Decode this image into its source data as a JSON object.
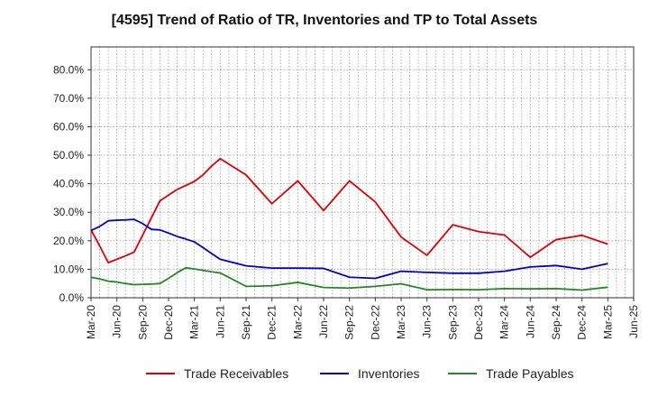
{
  "chart_data": {
    "type": "line",
    "title": "[4595]  Trend of Ratio of TR, Inventories and TP to Total Assets",
    "xlabel": "",
    "ylabel": "",
    "ylim": [
      0,
      0.88
    ],
    "y_ticks": [
      "0.0%",
      "10.0%",
      "20.0%",
      "30.0%",
      "40.0%",
      "50.0%",
      "60.0%",
      "70.0%",
      "80.0%"
    ],
    "y_tick_values": [
      0,
      0.1,
      0.2,
      0.3,
      0.4,
      0.5,
      0.6,
      0.7,
      0.8
    ],
    "x_tick_labels": [
      "Mar-20",
      "Jun-20",
      "Sep-20",
      "Dec-20",
      "Mar-21",
      "Jun-21",
      "Sep-21",
      "Dec-21",
      "Mar-22",
      "Jun-22",
      "Sep-22",
      "Dec-22",
      "Mar-23",
      "Jun-23",
      "Sep-23",
      "Dec-23",
      "Mar-24",
      "Jun-24",
      "Sep-24",
      "Dec-24",
      "Mar-25",
      "Jun-25"
    ],
    "x": [
      "2020-03",
      "2020-04",
      "2020-05",
      "2020-06",
      "2020-07",
      "2020-08",
      "2020-09",
      "2020-10",
      "2020-11",
      "2020-12",
      "2021-01",
      "2021-02",
      "2021-03",
      "2021-04",
      "2021-05",
      "2021-06",
      "2021-09",
      "2021-12",
      "2022-03",
      "2022-06",
      "2022-09",
      "2022-12",
      "2023-03",
      "2023-06",
      "2023-09",
      "2023-12",
      "2024-03",
      "2024-06",
      "2024-09",
      "2024-12",
      "2025-03"
    ],
    "grid": true,
    "legend_position": "bottom",
    "series": [
      {
        "name": "Trade Receivables",
        "color": "#dd0000",
        "values": [
          0.238,
          0.182,
          0.123,
          0.135,
          0.147,
          0.16,
          0.22,
          0.28,
          0.34,
          0.36,
          0.38,
          0.394,
          0.408,
          0.431,
          0.462,
          0.488,
          0.431,
          0.33,
          0.41,
          0.306,
          0.41,
          0.336,
          0.213,
          0.149,
          0.256,
          0.232,
          0.22,
          0.142,
          0.204,
          0.219,
          0.188
        ]
      },
      {
        "name": "Inventories",
        "color": "#0000cc",
        "values": [
          0.236,
          0.25,
          0.27,
          0.272,
          0.273,
          0.275,
          0.26,
          0.24,
          0.238,
          0.227,
          0.215,
          0.206,
          0.196,
          0.176,
          0.155,
          0.135,
          0.112,
          0.104,
          0.104,
          0.103,
          0.072,
          0.068,
          0.093,
          0.089,
          0.086,
          0.086,
          0.093,
          0.108,
          0.113,
          0.1,
          0.12
        ]
      },
      {
        "name": "Trade Payables",
        "color": "#228822",
        "values": [
          0.072,
          0.066,
          0.058,
          0.055,
          0.05,
          0.046,
          0.047,
          0.048,
          0.05,
          0.068,
          0.088,
          0.105,
          0.101,
          0.096,
          0.091,
          0.087,
          0.04,
          0.042,
          0.054,
          0.036,
          0.034,
          0.04,
          0.049,
          0.028,
          0.029,
          0.028,
          0.032,
          0.031,
          0.032,
          0.027,
          0.037
        ]
      }
    ]
  }
}
